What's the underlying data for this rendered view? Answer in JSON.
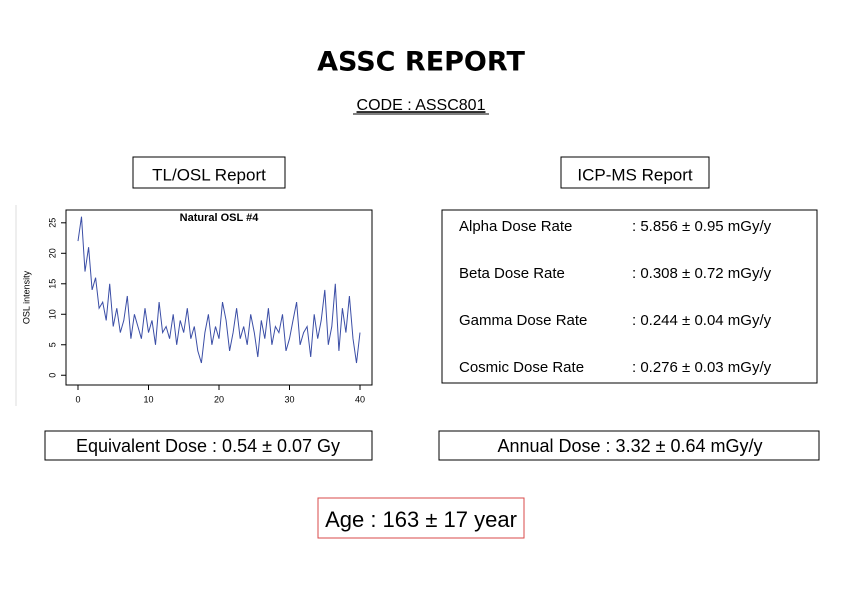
{
  "header": {
    "title": "ASSC REPORT",
    "code": "CODE : ASSC801"
  },
  "tl_osl": {
    "title": "TL/OSL Report",
    "equivalent_dose": "Equivalent Dose : 0.54 ± 0.07 Gy"
  },
  "icp_ms": {
    "title": "ICP-MS Report",
    "rows": [
      {
        "label": "Alpha Dose Rate",
        "value": ": 5.856 ± 0.95 mGy/y"
      },
      {
        "label": "Beta Dose Rate",
        "value": ": 0.308 ± 0.72 mGy/y"
      },
      {
        "label": "Gamma Dose Rate",
        "value": ": 0.244 ± 0.04 mGy/y"
      },
      {
        "label": "Cosmic Dose Rate",
        "value": ": 0.276 ± 0.03 mGy/y"
      }
    ],
    "annual_dose": "Annual Dose : 3.32 ± 0.64 mGy/y"
  },
  "age": "Age : 163 ± 17 year",
  "chart_data": {
    "type": "line",
    "title": "Natural OSL #4",
    "y_label": "OSL intensity",
    "color": "#3b4ea6",
    "xlim": [
      -1.7,
      41.7
    ],
    "xticks": [
      0,
      10,
      20,
      30,
      40
    ],
    "ylim": [
      -1.6,
      27.1
    ],
    "yticks": [
      0,
      5,
      10,
      15,
      20,
      25
    ],
    "x": [
      0,
      0.5,
      1,
      1.5,
      2,
      2.5,
      3,
      3.5,
      4,
      4.5,
      5,
      5.5,
      6,
      6.5,
      7,
      7.5,
      8,
      8.5,
      9,
      9.5,
      10,
      10.5,
      11,
      11.5,
      12,
      12.5,
      13,
      13.5,
      14,
      14.5,
      15,
      15.5,
      16,
      16.5,
      17,
      17.5,
      18,
      18.5,
      19,
      19.5,
      20,
      20.5,
      21,
      21.5,
      22,
      22.5,
      23,
      23.5,
      24,
      24.5,
      25,
      25.5,
      26,
      26.5,
      27,
      27.5,
      28,
      28.5,
      29,
      29.5,
      30,
      30.5,
      31,
      31.5,
      32,
      32.5,
      33,
      33.5,
      34,
      34.5,
      35,
      35.5,
      36,
      36.5,
      37,
      37.5,
      38,
      38.5,
      39,
      39.5,
      40
    ],
    "values": [
      22,
      26,
      17,
      21,
      14,
      16,
      11,
      12,
      9,
      15,
      8,
      11,
      7,
      9,
      13,
      6,
      10,
      8,
      6,
      11,
      7,
      9,
      5,
      12,
      7,
      8,
      6,
      10,
      5,
      9,
      7,
      11,
      6,
      8,
      4,
      2,
      7,
      10,
      5,
      8,
      6,
      12,
      9,
      4,
      7,
      11,
      6,
      8,
      5,
      10,
      7,
      3,
      9,
      6,
      11,
      5,
      8,
      7,
      10,
      4,
      6,
      9,
      12,
      5,
      7,
      8,
      3,
      10,
      6,
      9,
      14,
      5,
      8,
      15,
      4,
      11,
      7,
      13,
      6,
      2,
      7
    ]
  }
}
